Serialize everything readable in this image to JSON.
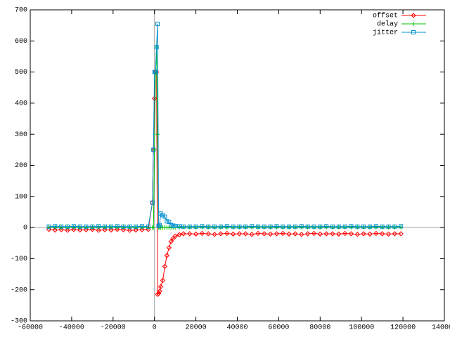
{
  "chart_data": {
    "type": "line",
    "x": [
      -51000,
      -48000,
      -45000,
      -42000,
      -39000,
      -36000,
      -33000,
      -30000,
      -27000,
      -24000,
      -21000,
      -18000,
      -15000,
      -12000,
      -9000,
      -6000,
      -3000,
      -1000,
      -500,
      0,
      500,
      1000,
      1500,
      2000,
      2500,
      3000,
      4000,
      5000,
      6000,
      7000,
      8000,
      9000,
      10000,
      12000,
      14000,
      17000,
      20000,
      23000,
      26000,
      29000,
      32000,
      35000,
      38000,
      41000,
      44000,
      47000,
      50000,
      53000,
      56000,
      59000,
      62000,
      65000,
      68000,
      71000,
      74000,
      77000,
      80000,
      83000,
      86000,
      89000,
      92000,
      95000,
      98000,
      101000,
      104000,
      107000,
      110000,
      113000,
      116000,
      119000
    ],
    "series": [
      {
        "name": "offset",
        "color": "#ff0000",
        "marker": "diamond",
        "values": [
          -6,
          -8,
          -7,
          -9,
          -6,
          -8,
          -7,
          -6,
          -9,
          -7,
          -8,
          -6,
          -7,
          -9,
          -8,
          -7,
          -6,
          80,
          250,
          415,
          500,
          500,
          -215,
          -212,
          -205,
          -190,
          -170,
          -125,
          -90,
          -65,
          -45,
          -35,
          -28,
          -23,
          -20,
          -20,
          -21,
          -19,
          -20,
          -22,
          -20,
          -19,
          -21,
          -20,
          -20,
          -22,
          -19,
          -20,
          -21,
          -20,
          -19,
          -21,
          -20,
          -22,
          -20,
          -19,
          -21,
          -20,
          -20,
          -21,
          -19,
          -20,
          -22,
          -20,
          -21,
          -19,
          -20,
          -21,
          -20,
          -20
        ]
      },
      {
        "name": "delay",
        "color": "#00c000",
        "marker": "plus",
        "values": [
          1,
          1,
          1,
          1,
          1,
          1,
          1,
          1,
          1,
          1,
          1,
          1,
          1,
          1,
          1,
          1,
          1,
          0,
          0,
          250,
          500,
          580,
          300,
          0,
          0,
          0,
          0,
          0,
          0,
          0,
          0,
          0,
          0,
          1,
          1,
          1,
          1,
          1,
          1,
          1,
          1,
          1,
          1,
          1,
          1,
          1,
          1,
          1,
          1,
          1,
          1,
          1,
          1,
          1,
          1,
          1,
          1,
          1,
          1,
          1,
          1,
          1,
          1,
          1,
          1,
          1,
          1,
          1,
          1,
          1
        ]
      },
      {
        "name": "jitter",
        "color": "#0090d0",
        "marker": "square",
        "values": [
          3,
          4,
          3,
          3,
          4,
          3,
          3,
          3,
          4,
          3,
          3,
          4,
          3,
          3,
          3,
          4,
          3,
          80,
          250,
          500,
          500,
          580,
          655,
          5,
          8,
          45,
          40,
          35,
          20,
          18,
          8,
          6,
          5,
          4,
          3,
          3,
          3,
          4,
          3,
          3,
          3,
          4,
          3,
          3,
          3,
          4,
          3,
          3,
          3,
          4,
          3,
          3,
          3,
          4,
          3,
          3,
          3,
          4,
          3,
          3,
          3,
          4,
          3,
          3,
          3,
          4,
          3,
          3,
          3,
          4
        ]
      }
    ],
    "xlim": [
      -60000,
      140000
    ],
    "xticks": [
      -60000,
      -40000,
      -20000,
      0,
      20000,
      40000,
      60000,
      80000,
      100000,
      120000,
      140000
    ],
    "ylim": [
      -300,
      700
    ],
    "yticks": [
      -300,
      -200,
      -100,
      0,
      100,
      200,
      300,
      400,
      500,
      600,
      700
    ],
    "zero_axis": true,
    "legend": "top-right"
  }
}
